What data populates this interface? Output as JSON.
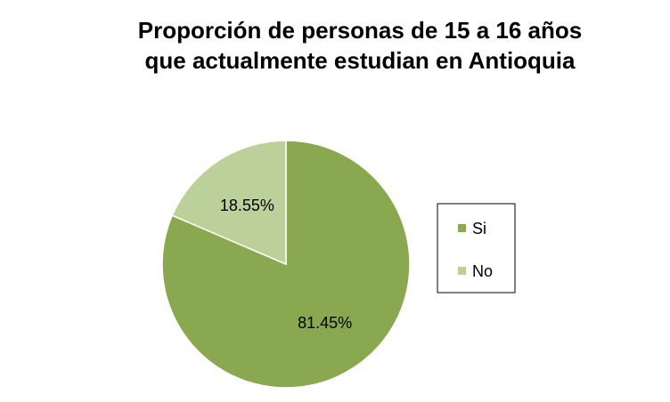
{
  "chart_data": {
    "type": "pie",
    "title_lines": [
      "Proporción de personas de 15 a 16 años",
      "que actualmente estudian en Antioquia"
    ],
    "slices": [
      {
        "name": "Si",
        "value": 81.45,
        "label": "81.45%",
        "color": "#8aa84f"
      },
      {
        "name": "No",
        "value": 18.55,
        "label": "18.55%",
        "color": "#bcd09a"
      }
    ],
    "start_angle_deg": 0,
    "direction": "clockwise",
    "legend": {
      "position": "right",
      "entries": [
        "Si",
        "No"
      ]
    },
    "slice_border_color": "#ffffff"
  }
}
